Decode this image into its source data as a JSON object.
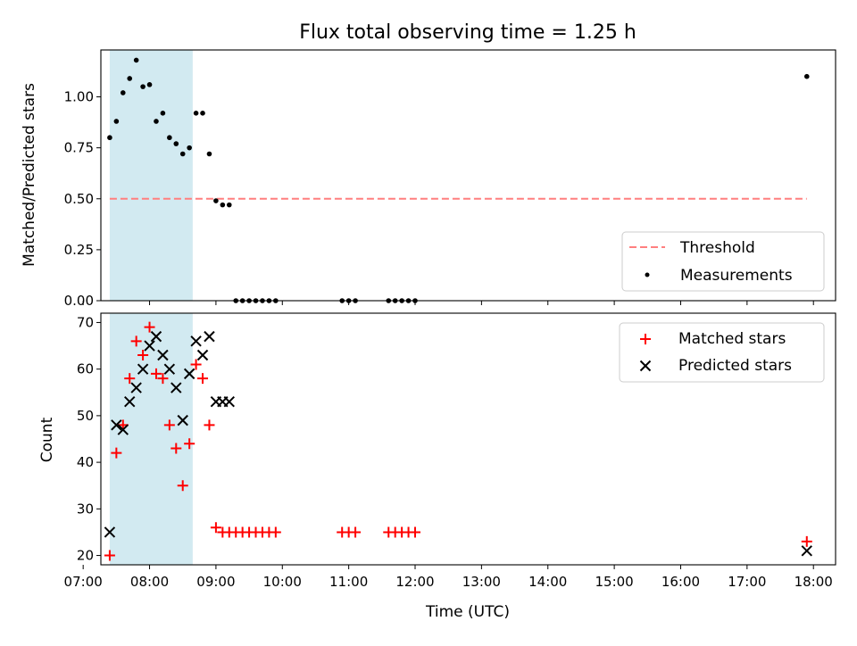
{
  "chart_data": [
    {
      "type": "scatter",
      "title": "Flux total observing time = 1.25 h",
      "xlabel": "",
      "ylabel": "Matched/Predicted stars",
      "xlim": [
        "07:16",
        "18:20"
      ],
      "ylim": [
        0,
        1.23
      ],
      "yticks": [
        "0.00",
        "0.25",
        "0.50",
        "0.75",
        "1.00"
      ],
      "shaded_span": {
        "start": "07:24",
        "end": "08:39",
        "color": "#add8e6"
      },
      "legend_position": "lower right",
      "series": [
        {
          "name": "Threshold",
          "style": "dashed line",
          "color": "#ff7f7f",
          "x": [
            "07:24",
            "17:54"
          ],
          "y": [
            0.5,
            0.5
          ]
        },
        {
          "name": "Measurements",
          "style": "dot",
          "color": "#000000",
          "x": [
            "07:24",
            "07:30",
            "07:36",
            "07:42",
            "07:48",
            "07:54",
            "08:00",
            "08:06",
            "08:12",
            "08:18",
            "08:24",
            "08:30",
            "08:36",
            "08:42",
            "08:48",
            "08:54",
            "09:00",
            "09:06",
            "09:12",
            "09:18",
            "09:24",
            "09:30",
            "09:36",
            "09:42",
            "09:48",
            "09:54",
            "10:54",
            "11:00",
            "11:06",
            "11:36",
            "11:42",
            "11:48",
            "11:54",
            "12:00",
            "17:54"
          ],
          "y": [
            0.8,
            0.88,
            1.02,
            1.09,
            1.18,
            1.05,
            1.06,
            0.88,
            0.92,
            0.8,
            0.77,
            0.72,
            0.75,
            0.92,
            0.92,
            0.72,
            0.49,
            0.47,
            0.47,
            0.0,
            0.0,
            0.0,
            0.0,
            0.0,
            0.0,
            0.0,
            0.0,
            0.0,
            0.0,
            0.0,
            0.0,
            0.0,
            0.0,
            0.0,
            1.1
          ]
        }
      ]
    },
    {
      "type": "scatter",
      "title": "",
      "xlabel": "Time (UTC)",
      "ylabel": "Count",
      "xlim": [
        "07:16",
        "18:20"
      ],
      "ylim": [
        18,
        72
      ],
      "xticks": [
        "07:00",
        "08:00",
        "09:00",
        "10:00",
        "11:00",
        "12:00",
        "13:00",
        "14:00",
        "15:00",
        "16:00",
        "17:00",
        "18:00"
      ],
      "yticks": [
        "20",
        "30",
        "40",
        "50",
        "60",
        "70"
      ],
      "shaded_span": {
        "start": "07:24",
        "end": "08:39",
        "color": "#add8e6"
      },
      "legend_position": "upper right",
      "series": [
        {
          "name": "Matched stars",
          "marker": "+",
          "color": "#ff0000",
          "x": [
            "07:24",
            "07:30",
            "07:36",
            "07:42",
            "07:48",
            "07:54",
            "08:00",
            "08:06",
            "08:12",
            "08:18",
            "08:24",
            "08:30",
            "08:36",
            "08:42",
            "08:48",
            "08:54",
            "09:00",
            "09:06",
            "09:12",
            "09:18",
            "09:24",
            "09:30",
            "09:36",
            "09:42",
            "09:48",
            "09:54",
            "10:54",
            "11:00",
            "11:06",
            "11:36",
            "11:42",
            "11:48",
            "11:54",
            "12:00",
            "17:54"
          ],
          "y": [
            20,
            42,
            48,
            58,
            66,
            63,
            69,
            59,
            58,
            48,
            43,
            35,
            44,
            61,
            58,
            48,
            26,
            25,
            25,
            25,
            25,
            25,
            25,
            25,
            25,
            25,
            25,
            25,
            25,
            25,
            25,
            25,
            25,
            25,
            23
          ]
        },
        {
          "name": "Predicted stars",
          "marker": "x",
          "color": "#000000",
          "x": [
            "07:24",
            "07:30",
            "07:36",
            "07:42",
            "07:48",
            "07:54",
            "08:00",
            "08:06",
            "08:12",
            "08:18",
            "08:24",
            "08:30",
            "08:36",
            "08:42",
            "08:48",
            "08:54",
            "09:00",
            "09:06",
            "09:12",
            "17:54"
          ],
          "y": [
            25,
            48,
            47,
            53,
            56,
            60,
            65,
            67,
            63,
            60,
            56,
            49,
            59,
            66,
            63,
            67,
            53,
            53,
            53,
            21
          ]
        }
      ]
    }
  ]
}
